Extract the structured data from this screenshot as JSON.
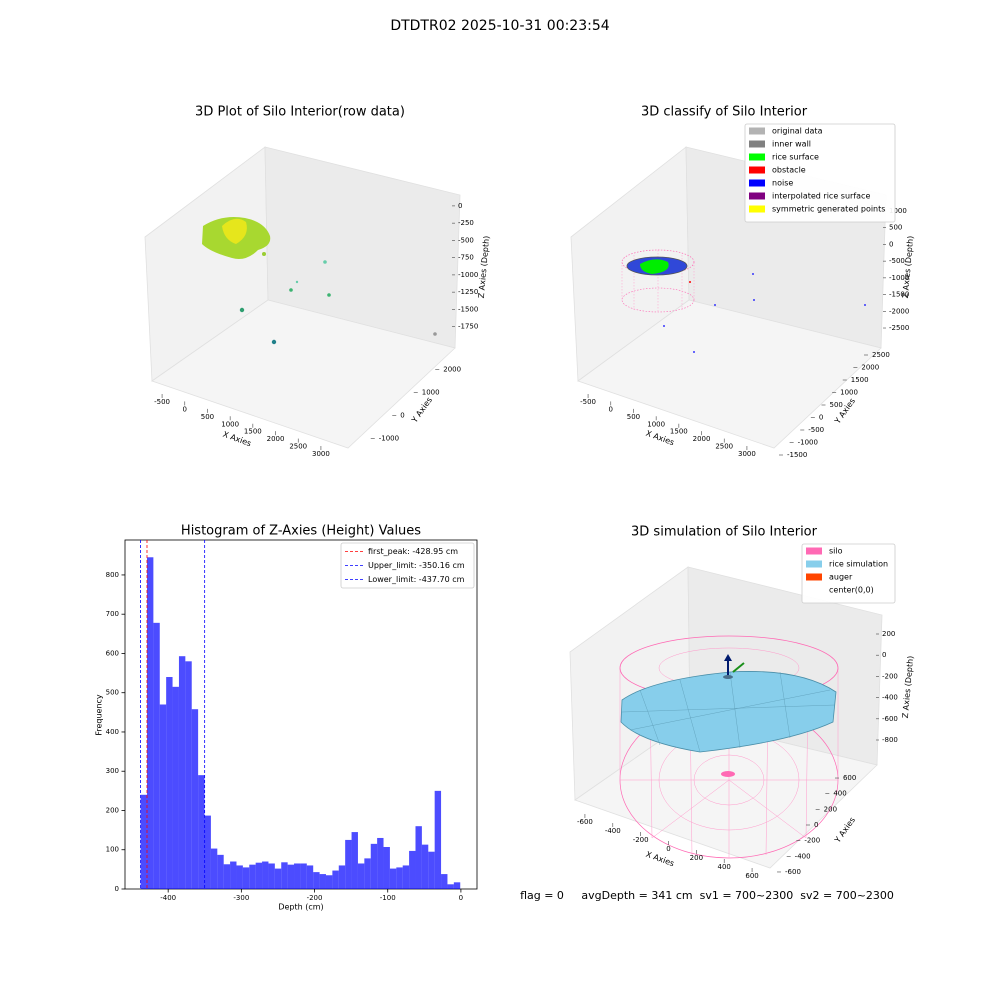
{
  "title": "DTDTR02 2025-10-31 00:23:54",
  "footer": "flag = 0     avgDepth = 341 cm  sv1 = 700~2300  sv2 = 700~2300",
  "chart_data": [
    {
      "type": "scatter3d",
      "title": "3D Plot of Silo Interior(row data)",
      "xlabel": "X Axies",
      "ylabel": "Y Axies",
      "zlabel": "Z Axies (Depth)",
      "xlim": [
        -700,
        3200
      ],
      "ylim": [
        -1500,
        2500
      ],
      "zlim": [
        -1900,
        100
      ],
      "xticks": [
        -500,
        0,
        500,
        1000,
        1500,
        2000,
        2500,
        3000
      ],
      "yticks": [
        -1000,
        0,
        1000,
        2000
      ],
      "zticks": [
        0,
        -250,
        -500,
        -750,
        -1000,
        -1250,
        -1500,
        -1750
      ]
    },
    {
      "type": "scatter3d",
      "title": "3D classify of Silo Interior",
      "xlabel": "X Axies",
      "ylabel": "Y Axies",
      "zlabel": "Z Axies (Depth)",
      "xlim": [
        -700,
        3200
      ],
      "ylim": [
        -1700,
        2700
      ],
      "zlim": [
        -2700,
        1200
      ],
      "xticks": [
        -500,
        0,
        500,
        1000,
        1500,
        2000,
        2500,
        3000
      ],
      "yticks": [
        -1500,
        -1000,
        -500,
        0,
        500,
        1000,
        1500,
        2000,
        2500
      ],
      "zticks": [
        1000,
        500,
        0,
        -500,
        -1000,
        -1500,
        -2000,
        -2500
      ],
      "legend": [
        {
          "name": "original data",
          "color": "#b3b3b3"
        },
        {
          "name": "inner wall",
          "color": "#808080"
        },
        {
          "name": "rice surface",
          "color": "#00ff00"
        },
        {
          "name": "obstacle",
          "color": "#ff0000"
        },
        {
          "name": "noise",
          "color": "#0000ff"
        },
        {
          "name": "interpolated rice surface",
          "color": "#800080"
        },
        {
          "name": "symmetric generated points",
          "color": "#ffff00"
        }
      ]
    },
    {
      "type": "histogram",
      "title": "Histogram of Z-Axies (Height) Values",
      "xlabel": "Depth (cm)",
      "ylabel": "Frequency",
      "color": "#0000ff",
      "alpha": 0.7,
      "xlim": [
        -459,
        22
      ],
      "ylim": [
        0,
        889
      ],
      "xticks": [
        -400,
        -300,
        -200,
        -100,
        0
      ],
      "yticks": [
        0,
        100,
        200,
        300,
        400,
        500,
        600,
        700,
        800
      ],
      "bins": [
        -437.7,
        -428.96,
        -420.23,
        -411.49,
        -402.76,
        -394.02,
        -385.28,
        -376.55,
        -367.81,
        -359.08,
        -350.34,
        -341.6,
        -332.87,
        -324.13,
        -315.4,
        -306.66,
        -297.92,
        -289.19,
        -280.45,
        -271.72,
        -262.98,
        -254.24,
        -245.51,
        -236.77,
        -228.04,
        -219.3,
        -210.56,
        -201.83,
        -193.09,
        -184.36,
        -175.62,
        -166.88,
        -158.15,
        -149.41,
        -140.68,
        -131.94,
        -123.2,
        -114.47,
        -105.73,
        -97.0,
        -88.26,
        -79.52,
        -70.79,
        -62.05,
        -53.32,
        -44.58,
        -35.84,
        -27.11,
        -18.37,
        -9.64,
        -0.9
      ],
      "counts": [
        240,
        845,
        678,
        470,
        540,
        515,
        593,
        580,
        458,
        290,
        187,
        103,
        87,
        63,
        70,
        60,
        55,
        62,
        67,
        70,
        65,
        52,
        68,
        62,
        65,
        65,
        60,
        43,
        38,
        35,
        47,
        60,
        125,
        145,
        65,
        78,
        115,
        130,
        107,
        52,
        55,
        60,
        97,
        160,
        113,
        95,
        250,
        38,
        12,
        17
      ],
      "vlines": [
        {
          "label": "first_peak: -428.95 cm",
          "value": -428.95,
          "color": "#ff0000"
        },
        {
          "label": "Upper_limit: -350.16 cm",
          "value": -350.16,
          "color": "#0000ff"
        },
        {
          "label": "Lower_limit: -437.70 cm",
          "value": -437.7,
          "color": "#0000ff"
        }
      ],
      "legend_loc": "upper right"
    },
    {
      "type": "surface3d",
      "title": "3D simulation of Silo Interior",
      "xlabel": "X Axies",
      "ylabel": "Y Axies",
      "zlabel": "Z Axies (Depth)",
      "xlim": [
        -700,
        700
      ],
      "ylim": [
        -700,
        700
      ],
      "zlim": [
        -950,
        350
      ],
      "xticks": [
        -600,
        -400,
        -200,
        0,
        200,
        400,
        600
      ],
      "yticks": [
        -600,
        -400,
        -200,
        0,
        200,
        400,
        600
      ],
      "zticks": [
        200,
        0,
        -200,
        -400,
        -600,
        -800
      ],
      "legend": [
        {
          "name": "silo",
          "color": "#ff69b4"
        },
        {
          "name": "rice simulation",
          "color": "#87ceeb"
        },
        {
          "name": "auger",
          "color": "#ff4500"
        },
        {
          "name": "center(0,0)",
          "color": "#ffffff"
        }
      ]
    }
  ]
}
